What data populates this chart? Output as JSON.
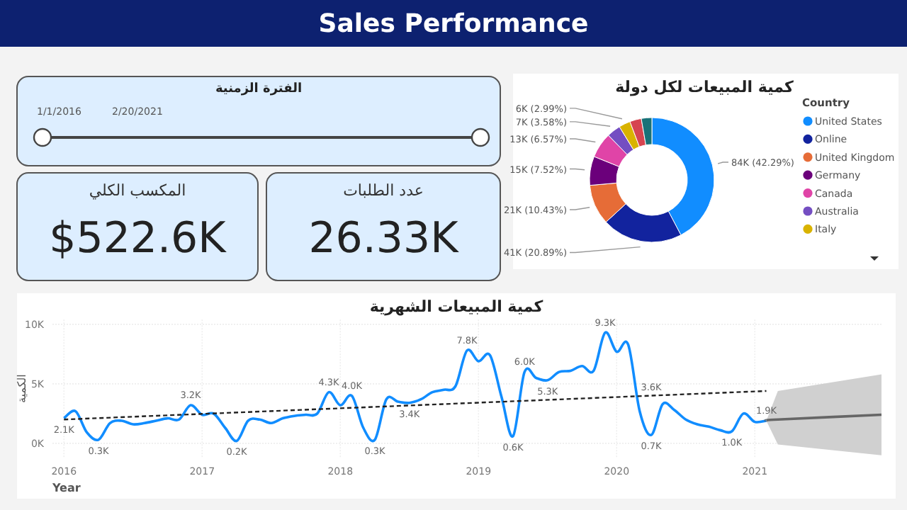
{
  "chart_data": [
    {
      "type": "other",
      "title": "Sales Performance"
    },
    {
      "type": "other",
      "title": "الفترة الزمنية",
      "annotations": [
        "1/1/2016",
        "2/20/2021"
      ]
    },
    {
      "type": "other",
      "title": "المكسب الكلي",
      "annotations": [
        "$522.6K"
      ]
    },
    {
      "type": "other",
      "title": "عدد الطلبات",
      "annotations": [
        "26.33K"
      ]
    },
    {
      "type": "donut",
      "title": "كمية المبيعات لكل دولة",
      "legend_title": "Country",
      "legend": "right",
      "categories": [
        "United States",
        "Online",
        "United Kingdom",
        "Germany",
        "Canada",
        "Australia",
        "Italy",
        null,
        null
      ],
      "values": [
        42.29,
        20.89,
        10.43,
        7.52,
        6.57,
        3.58,
        2.99,
        3.0,
        2.73
      ],
      "colors": [
        "#118dff",
        "#12239e",
        "#e66c37",
        "#6b007b",
        "#e044a7",
        "#744ec2",
        "#d9b300",
        "#d64550",
        "#197278"
      ],
      "value_labels": [
        "84K (42.29%)",
        "41K (20.89%)",
        "21K (10.43%)",
        "15K (7.52%)",
        "13K (6.57%)",
        "7K (3.58%)",
        "6K (2.99%)",
        null,
        null
      ]
    },
    {
      "type": "line",
      "title": "كمية المبيعات الشهرية",
      "xlabel": "Year",
      "ylabel": "الكمية",
      "grid": true,
      "marker": "none",
      "xlim": [
        "2015-12",
        "2021-12"
      ],
      "ylim": [
        -1.2,
        10.4
      ],
      "xticks": [
        {
          "value": "2016-01",
          "label": "2016"
        },
        {
          "value": "2017-01",
          "label": "2017"
        },
        {
          "value": "2018-01",
          "label": "2018"
        },
        {
          "value": "2019-01",
          "label": "2019"
        },
        {
          "value": "2020-01",
          "label": "2020"
        },
        {
          "value": "2021-01",
          "label": "2021"
        }
      ],
      "yticks": [
        {
          "value": 0,
          "label": "0K"
        },
        {
          "value": 5,
          "label": "5K"
        },
        {
          "value": 10,
          "label": "10K"
        }
      ],
      "annotations": [
        {
          "text": "3.6K",
          "x": "2020-04",
          "y": 4.0
        }
      ],
      "series": [
        {
          "color": "#118dff",
          "line_style": "solid",
          "x": [
            "2016-01",
            "2016-02",
            "2016-03",
            "2016-04",
            "2016-05",
            "2016-06",
            "2016-07",
            "2016-08",
            "2016-09",
            "2016-10",
            "2016-11",
            "2016-12",
            "2017-01",
            "2017-02",
            "2017-03",
            "2017-04",
            "2017-05",
            "2017-06",
            "2017-07",
            "2017-08",
            "2017-09",
            "2017-10",
            "2017-11",
            "2017-12",
            "2018-01",
            "2018-02",
            "2018-03",
            "2018-04",
            "2018-05",
            "2018-06",
            "2018-07",
            "2018-08",
            "2018-09",
            "2018-10",
            "2018-11",
            "2018-12",
            "2019-01",
            "2019-02",
            "2019-03",
            "2019-04",
            "2019-05",
            "2019-06",
            "2019-07",
            "2019-08",
            "2019-09",
            "2019-10",
            "2019-11",
            "2019-12",
            "2020-01",
            "2020-02",
            "2020-03",
            "2020-04",
            "2020-05",
            "2020-06",
            "2020-07",
            "2020-08",
            "2020-09",
            "2020-10",
            "2020-11",
            "2020-12",
            "2021-01",
            "2021-02"
          ],
          "values": [
            2.1,
            2.7,
            0.9,
            0.3,
            1.7,
            1.9,
            1.6,
            1.7,
            1.9,
            2.1,
            2.0,
            3.2,
            2.4,
            2.5,
            1.3,
            0.2,
            1.9,
            2.0,
            1.7,
            2.1,
            2.3,
            2.4,
            2.5,
            4.3,
            3.2,
            4.0,
            1.3,
            0.3,
            3.7,
            3.5,
            3.4,
            3.7,
            4.3,
            4.5,
            4.8,
            7.8,
            6.9,
            7.4,
            3.9,
            0.6,
            6.0,
            5.5,
            5.3,
            6.0,
            6.1,
            6.5,
            6.1,
            9.3,
            7.7,
            8.3,
            2.7,
            0.7,
            3.3,
            2.8,
            2.0,
            1.6,
            1.4,
            1.1,
            1.0,
            2.5,
            1.8,
            1.9
          ],
          "value_labels": [
            "2.1K",
            null,
            null,
            "0.3K",
            null,
            null,
            null,
            null,
            null,
            null,
            null,
            "3.2K",
            null,
            null,
            null,
            "0.2K",
            null,
            null,
            null,
            null,
            null,
            null,
            null,
            "4.3K",
            null,
            "4.0K",
            null,
            "0.3K",
            null,
            null,
            "3.4K",
            null,
            null,
            null,
            null,
            "7.8K",
            null,
            null,
            null,
            "0.6K",
            "6.0K",
            null,
            "5.3K",
            null,
            null,
            null,
            null,
            "9.3K",
            null,
            null,
            null,
            "0.7K",
            null,
            null,
            null,
            null,
            null,
            null,
            "1.0K",
            null,
            null,
            "1.9K"
          ]
        },
        {
          "color": "#222222",
          "line_style": "dashed",
          "x": [
            "2016-01",
            "2021-02"
          ],
          "values": [
            2.0,
            4.4
          ]
        },
        {
          "color": "#666666",
          "line_style": "solid",
          "x": [
            "2021-02",
            "2021-03",
            "2021-12"
          ],
          "values": [
            1.9,
            2.0,
            2.4
          ],
          "lower": [
            1.9,
            -0.1,
            -1.0
          ],
          "upper": [
            1.9,
            4.4,
            5.8
          ]
        }
      ]
    }
  ]
}
